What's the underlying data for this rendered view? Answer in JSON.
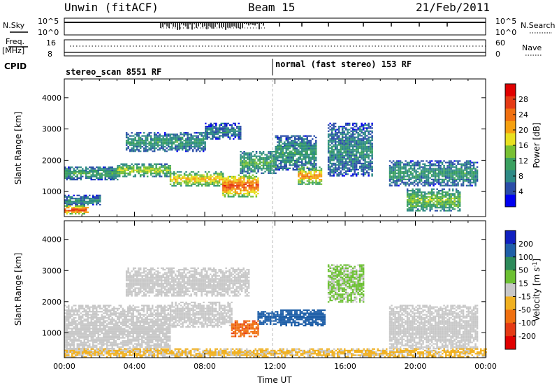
{
  "header": {
    "site": "Unwin (fitACF)",
    "beam": "Beam 15",
    "date": "21/Feb/2011"
  },
  "params": {
    "nsky_label": "N.Sky",
    "nsearch_label": "N.Search",
    "freq_label": "Freq.",
    "freq_unit": "[MHz]",
    "nave_label": "Nave",
    "cpid_label": "CPID",
    "nsky_ticks": [
      "10^5",
      "10^0"
    ],
    "nsearch_ticks": [
      "10^5",
      "10^0"
    ],
    "freq_ticks": [
      "16",
      "8"
    ],
    "nave_ticks": [
      "60",
      "0"
    ]
  },
  "cpid": [
    {
      "text": "stereo_scan 8551 RF",
      "start_hour": 0
    },
    {
      "text": "normal (fast stereo) 153 RF",
      "start_hour": 12
    }
  ],
  "chart_data": [
    {
      "type": "heatmap",
      "quantity": "power",
      "xlabel": "Time UT",
      "ylabel": "Slant Range [km]",
      "xlim": [
        0,
        24
      ],
      "ylim": [
        200,
        4600
      ],
      "yticks": [
        "1000",
        "2000",
        "3000",
        "4000"
      ],
      "colorbar": {
        "label": "Power [dB]",
        "range": [
          0,
          32
        ],
        "ticks": [
          "4",
          "8",
          "12",
          "16",
          "20",
          "24",
          "28"
        ],
        "colors": [
          "#0000f0",
          "#2a4da8",
          "#2e8a86",
          "#3aa060",
          "#78c033",
          "#e8e020",
          "#f5a010",
          "#f07010",
          "#e53a14",
          "#e00000"
        ]
      },
      "echo_bands": [
        {
          "t": [
            0.0,
            1.3
          ],
          "r": [
            310,
            560
          ],
          "p": 25
        },
        {
          "t": [
            0.0,
            2.0
          ],
          "r": [
            560,
            900
          ],
          "p": 8
        },
        {
          "t": [
            0.0,
            3.0
          ],
          "r": [
            1400,
            1800
          ],
          "p": 10
        },
        {
          "t": [
            3.0,
            6.0
          ],
          "r": [
            1500,
            1900
          ],
          "p": 14
        },
        {
          "t": [
            6.0,
            9.0
          ],
          "r": [
            1200,
            1650
          ],
          "p": 18
        },
        {
          "t": [
            9.0,
            11.0
          ],
          "r": [
            850,
            1550
          ],
          "p": 23
        },
        {
          "t": [
            10.0,
            12.0
          ],
          "r": [
            1600,
            2300
          ],
          "p": 11
        },
        {
          "t": [
            3.5,
            8.0
          ],
          "r": [
            2300,
            2900
          ],
          "p": 9
        },
        {
          "t": [
            8.0,
            10.0
          ],
          "r": [
            2700,
            3200
          ],
          "p": 7
        },
        {
          "t": [
            12.0,
            14.3
          ],
          "r": [
            1700,
            2800
          ],
          "p": 9
        },
        {
          "t": [
            13.3,
            14.6
          ],
          "r": [
            1250,
            1800
          ],
          "p": 20
        },
        {
          "t": [
            15.0,
            17.5
          ],
          "r": [
            1500,
            3200
          ],
          "p": 8
        },
        {
          "t": [
            18.5,
            23.5
          ],
          "r": [
            1200,
            2000
          ],
          "p": 9
        },
        {
          "t": [
            19.5,
            22.5
          ],
          "r": [
            400,
            1100
          ],
          "p": 13
        }
      ]
    },
    {
      "type": "heatmap",
      "quantity": "velocity",
      "xlabel": "Time UT",
      "ylabel": "Slant Range [km]",
      "xlim": [
        0,
        24
      ],
      "ylim": [
        200,
        4600
      ],
      "xticks": [
        "00:00",
        "04:00",
        "08:00",
        "12:00",
        "16:00",
        "20:00",
        "00:00"
      ],
      "yticks": [
        "1000",
        "2000",
        "3000",
        "4000"
      ],
      "colorbar": {
        "label": "Velocity [m s",
        "label_sup": "-1",
        "label_end": "]",
        "ticks": [
          "200",
          "100",
          "50",
          "15",
          "-15",
          "-50",
          "-100",
          "-200"
        ],
        "colors": [
          "#1020c0",
          "#1f5fa8",
          "#2d8a5a",
          "#6cc032",
          "#c8c8c8",
          "#f0b020",
          "#f07010",
          "#e53a14",
          "#e00000"
        ]
      },
      "echo_bands": [
        {
          "t": [
            0.0,
            6.0
          ],
          "r": [
            400,
            1900
          ],
          "v": 0
        },
        {
          "t": [
            6.0,
            9.5
          ],
          "r": [
            1200,
            2000
          ],
          "v": 0
        },
        {
          "t": [
            9.5,
            11.0
          ],
          "r": [
            900,
            1400
          ],
          "v": -90
        },
        {
          "t": [
            11.0,
            12.3
          ],
          "r": [
            1300,
            1700
          ],
          "v": 130
        },
        {
          "t": [
            12.3,
            14.8
          ],
          "r": [
            1250,
            1750
          ],
          "v": 150
        },
        {
          "t": [
            3.5,
            10.5
          ],
          "r": [
            2200,
            3100
          ],
          "v": 0
        },
        {
          "t": [
            15.0,
            17.0
          ],
          "r": [
            2000,
            3200
          ],
          "v": 20
        },
        {
          "t": [
            18.5,
            23.5
          ],
          "r": [
            500,
            1900
          ],
          "v": 0
        },
        {
          "t": [
            0.0,
            24.0
          ],
          "r": [
            250,
            500
          ],
          "v": -20
        }
      ]
    }
  ]
}
